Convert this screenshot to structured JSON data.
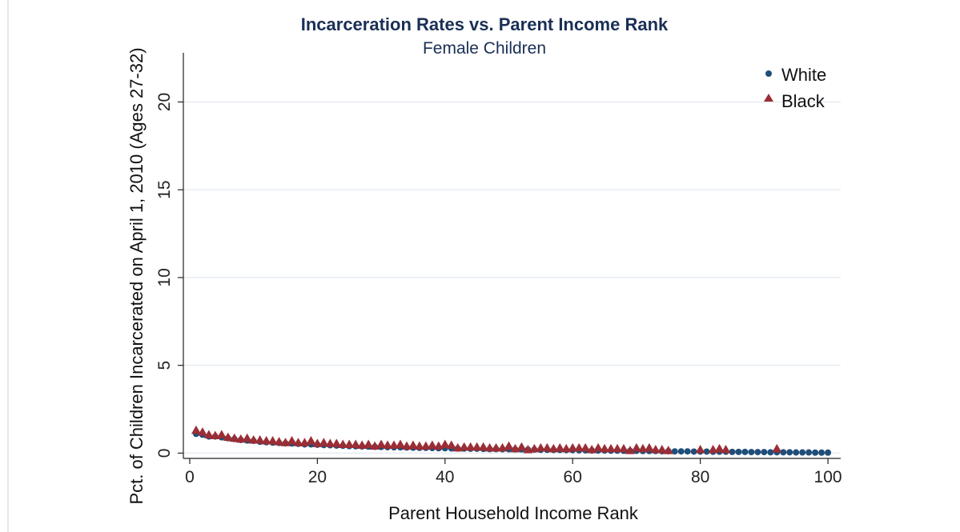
{
  "chart_data": {
    "type": "scatter",
    "title": "Incarceration Rates vs. Parent Income Rank",
    "subtitle": "Female Children",
    "xlabel": "Parent Household Income Rank",
    "ylabel": "Pct. of Children Incarcerated on April 1, 2010 (Ages 27-32)",
    "xlim": [
      -1,
      102
    ],
    "ylim": [
      -0.3,
      22.8
    ],
    "xticks": [
      "0",
      "20",
      "40",
      "60",
      "80",
      "100"
    ],
    "yticks": [
      "0",
      "5",
      "10",
      "15",
      "20"
    ],
    "grid": true,
    "legend_position": "top-right",
    "title_color": "#1a2f55",
    "series": [
      {
        "name": "White",
        "marker": "circle",
        "color": "#1f4e79",
        "x": [
          1,
          2,
          3,
          4,
          5,
          6,
          7,
          8,
          9,
          10,
          11,
          12,
          13,
          14,
          15,
          16,
          17,
          18,
          19,
          20,
          21,
          22,
          23,
          24,
          25,
          26,
          27,
          28,
          29,
          30,
          31,
          32,
          33,
          34,
          35,
          36,
          37,
          38,
          39,
          40,
          41,
          42,
          43,
          44,
          45,
          46,
          47,
          48,
          49,
          50,
          51,
          52,
          53,
          54,
          55,
          56,
          57,
          58,
          59,
          60,
          61,
          62,
          63,
          64,
          65,
          66,
          67,
          68,
          69,
          70,
          71,
          72,
          73,
          74,
          75,
          76,
          77,
          78,
          79,
          80,
          81,
          82,
          83,
          84,
          85,
          86,
          87,
          88,
          89,
          90,
          91,
          92,
          93,
          94,
          95,
          96,
          97,
          98,
          99,
          100
        ],
        "y": [
          1.1,
          1.05,
          0.95,
          0.95,
          0.9,
          0.85,
          0.8,
          0.75,
          0.72,
          0.7,
          0.65,
          0.62,
          0.6,
          0.58,
          0.56,
          0.55,
          0.53,
          0.5,
          0.5,
          0.48,
          0.46,
          0.45,
          0.43,
          0.42,
          0.4,
          0.39,
          0.38,
          0.37,
          0.36,
          0.35,
          0.34,
          0.33,
          0.33,
          0.32,
          0.31,
          0.3,
          0.3,
          0.29,
          0.28,
          0.28,
          0.27,
          0.26,
          0.26,
          0.25,
          0.25,
          0.24,
          0.23,
          0.23,
          0.22,
          0.22,
          0.21,
          0.21,
          0.2,
          0.2,
          0.19,
          0.19,
          0.18,
          0.18,
          0.17,
          0.17,
          0.16,
          0.16,
          0.15,
          0.15,
          0.15,
          0.14,
          0.14,
          0.13,
          0.13,
          0.13,
          0.12,
          0.12,
          0.12,
          0.11,
          0.11,
          0.1,
          0.1,
          0.1,
          0.09,
          0.09,
          0.09,
          0.08,
          0.08,
          0.08,
          0.07,
          0.07,
          0.07,
          0.06,
          0.06,
          0.06,
          0.05,
          0.05,
          0.05,
          0.05,
          0.04,
          0.04,
          0.04,
          0.03,
          0.03,
          0.03
        ]
      },
      {
        "name": "Black",
        "marker": "triangle",
        "color": "#9b2d35",
        "x": [
          1,
          2,
          3,
          4,
          5,
          6,
          7,
          8,
          9,
          10,
          11,
          12,
          13,
          14,
          15,
          16,
          17,
          18,
          19,
          20,
          21,
          22,
          23,
          24,
          25,
          26,
          27,
          28,
          29,
          30,
          31,
          32,
          33,
          34,
          35,
          36,
          37,
          38,
          39,
          40,
          41,
          42,
          43,
          44,
          45,
          46,
          47,
          48,
          49,
          50,
          51,
          52,
          53,
          54,
          55,
          56,
          57,
          58,
          59,
          60,
          61,
          62,
          63,
          64,
          65,
          66,
          67,
          68,
          69,
          70,
          71,
          72,
          73,
          74,
          75,
          80,
          82,
          83,
          84,
          92
        ],
        "y": [
          1.3,
          1.2,
          1.05,
          1.0,
          1.05,
          0.9,
          0.85,
          0.8,
          0.85,
          0.75,
          0.75,
          0.7,
          0.7,
          0.65,
          0.6,
          0.7,
          0.6,
          0.6,
          0.7,
          0.55,
          0.6,
          0.55,
          0.55,
          0.5,
          0.5,
          0.5,
          0.45,
          0.5,
          0.4,
          0.5,
          0.45,
          0.45,
          0.5,
          0.4,
          0.45,
          0.4,
          0.4,
          0.45,
          0.4,
          0.5,
          0.45,
          0.3,
          0.35,
          0.35,
          0.35,
          0.35,
          0.3,
          0.3,
          0.3,
          0.4,
          0.25,
          0.35,
          0.2,
          0.25,
          0.3,
          0.3,
          0.25,
          0.3,
          0.25,
          0.3,
          0.3,
          0.3,
          0.2,
          0.3,
          0.25,
          0.25,
          0.25,
          0.25,
          0.15,
          0.3,
          0.25,
          0.3,
          0.2,
          0.2,
          0.15,
          0.2,
          0.2,
          0.25,
          0.2,
          0.25
        ]
      }
    ]
  }
}
